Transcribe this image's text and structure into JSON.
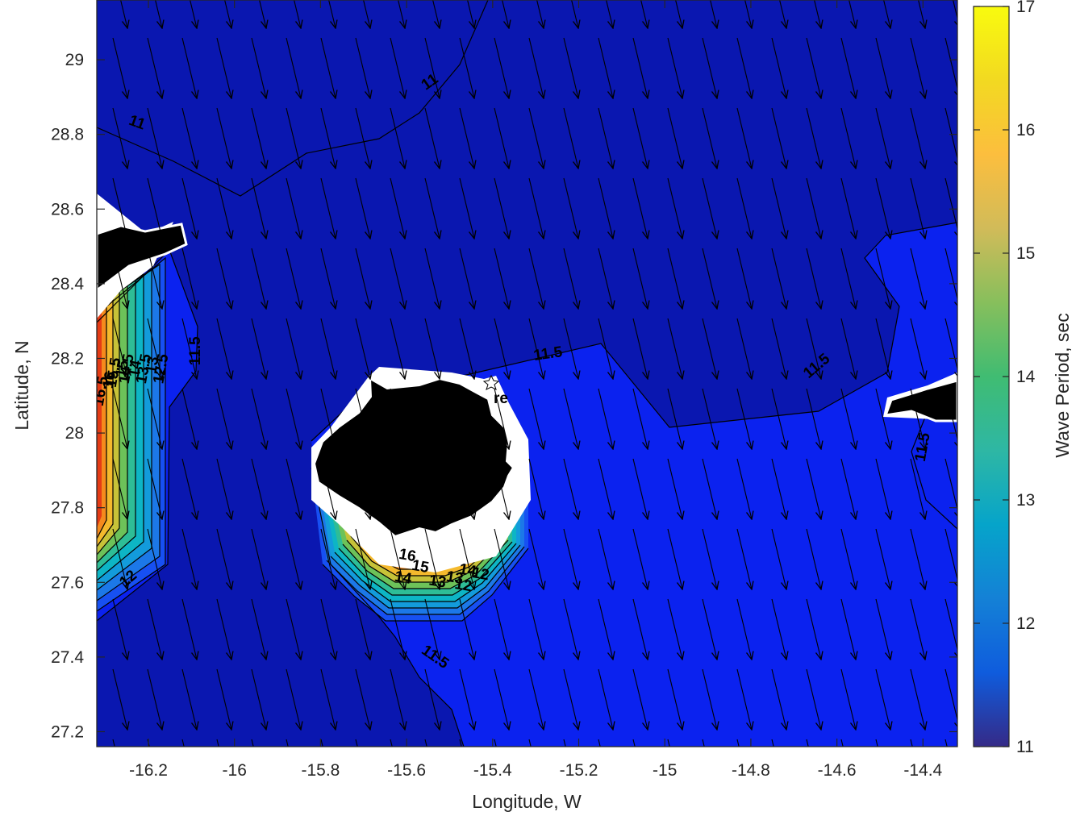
{
  "chart_data": {
    "type": "contour",
    "xlabel": "Longitude, W",
    "ylabel": "Latitude, N",
    "xlim": [
      -16.32,
      -14.32
    ],
    "ylim": [
      27.16,
      29.16
    ],
    "xticks": [
      -16.2,
      -16,
      -15.8,
      -15.6,
      -15.4,
      -15.2,
      -15,
      -14.8,
      -14.6,
      -14.4
    ],
    "yticks": [
      27.2,
      27.4,
      27.6,
      27.8,
      28,
      28.2,
      28.4,
      28.6,
      28.8,
      29
    ],
    "xtick_labels": [
      "-16.2",
      "-16",
      "-15.8",
      "-15.6",
      "-15.4",
      "-15.2",
      "-15",
      "-14.8",
      "-14.6",
      "-14.4"
    ],
    "ytick_labels": [
      "27.2",
      "27.4",
      "27.6",
      "27.8",
      "28",
      "28.2",
      "28.4",
      "28.6",
      "28.8",
      "29"
    ],
    "colorbar": {
      "label": "Wave Period, sec",
      "range": [
        11,
        17
      ],
      "ticks": [
        11,
        12,
        13,
        14,
        15,
        16,
        17
      ],
      "tick_labels": [
        "11",
        "12",
        "13",
        "14",
        "15",
        "16",
        "17"
      ],
      "colormap": "parula"
    },
    "contour_levels": [
      11,
      11.5,
      12,
      12.5,
      13,
      13.5,
      14,
      14.5,
      15,
      15.5,
      16,
      16.5
    ],
    "contour_labels": [
      {
        "text": "11",
        "x": -16.23,
        "y": 28.82,
        "angle": 20
      },
      {
        "text": "11",
        "x": -15.54,
        "y": 28.93,
        "angle": -35
      },
      {
        "text": "11.5",
        "x": -16.08,
        "y": 28.22,
        "angle": -90
      },
      {
        "text": "11.5",
        "x": -15.27,
        "y": 28.2,
        "angle": -8
      },
      {
        "text": "11.5",
        "x": -14.64,
        "y": 28.17,
        "angle": -40
      },
      {
        "text": "11.5",
        "x": -14.39,
        "y": 27.96,
        "angle": -80
      },
      {
        "text": "11.5",
        "x": -15.54,
        "y": 27.39,
        "angle": 35
      },
      {
        "text": "12",
        "x": -16.24,
        "y": 27.6,
        "angle": -40
      },
      {
        "text": "16.5",
        "x": -16.3,
        "y": 28.11,
        "angle": -80
      },
      {
        "text": "16",
        "x": -16.28,
        "y": 28.14,
        "angle": -80
      },
      {
        "text": "15.5",
        "x": -16.27,
        "y": 28.16,
        "angle": -80
      },
      {
        "text": "15",
        "x": -16.25,
        "y": 28.17,
        "angle": -80
      },
      {
        "text": "14.5",
        "x": -16.24,
        "y": 28.17,
        "angle": -80
      },
      {
        "text": "14",
        "x": -16.22,
        "y": 28.17,
        "angle": -80
      },
      {
        "text": "13.5",
        "x": -16.2,
        "y": 28.17,
        "angle": -80
      },
      {
        "text": "13",
        "x": -16.18,
        "y": 28.18,
        "angle": -80
      },
      {
        "text": "12.5",
        "x": -16.16,
        "y": 28.17,
        "angle": -80
      },
      {
        "text": "16",
        "x": -15.6,
        "y": 27.66,
        "angle": 10
      },
      {
        "text": "15",
        "x": -15.57,
        "y": 27.63,
        "angle": 10
      },
      {
        "text": "14",
        "x": -15.61,
        "y": 27.6,
        "angle": 10
      },
      {
        "text": "14",
        "x": -15.46,
        "y": 27.62,
        "angle": 10
      },
      {
        "text": "13",
        "x": -15.53,
        "y": 27.59,
        "angle": 10
      },
      {
        "text": "13",
        "x": -15.49,
        "y": 27.6,
        "angle": 10
      },
      {
        "text": "12",
        "x": -15.47,
        "y": 27.58,
        "angle": 10
      },
      {
        "text": "12",
        "x": -15.43,
        "y": 27.61,
        "angle": 10
      }
    ],
    "station_marker": {
      "label": "re",
      "x": -15.395,
      "y": 28.15
    }
  }
}
